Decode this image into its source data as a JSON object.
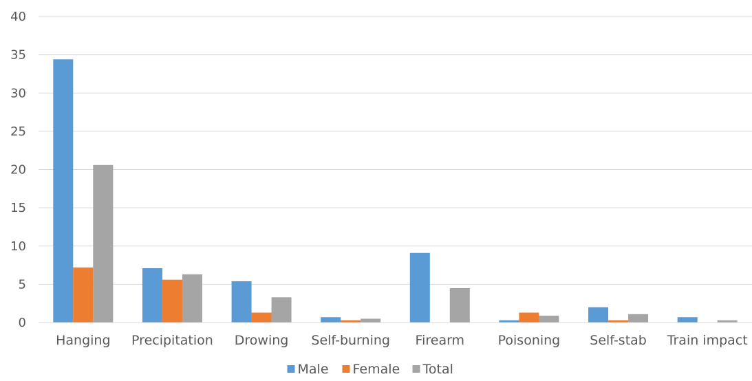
{
  "chart_data": {
    "type": "bar",
    "title": "",
    "xlabel": "",
    "ylabel": "",
    "ylim": [
      0,
      40
    ],
    "yticks": [
      0,
      5,
      10,
      15,
      20,
      25,
      30,
      35,
      40
    ],
    "grid": true,
    "legend_position": "bottom",
    "categories": [
      "Hanging",
      "Precipitation",
      "Drowing",
      "Self-burning",
      "Firearm",
      "Poisoning",
      "Self-stab",
      "Train impact"
    ],
    "series": [
      {
        "name": "Male",
        "color": "#5b9bd5",
        "values": [
          34.4,
          7.1,
          5.4,
          0.7,
          9.1,
          0.3,
          2.0,
          0.7
        ]
      },
      {
        "name": "Female",
        "color": "#ed7d31",
        "values": [
          7.2,
          5.6,
          1.3,
          0.3,
          0.0,
          1.3,
          0.3,
          0.0
        ]
      },
      {
        "name": "Total",
        "color": "#a5a5a5",
        "values": [
          20.6,
          6.3,
          3.3,
          0.5,
          4.5,
          0.9,
          1.1,
          0.3
        ]
      }
    ]
  }
}
